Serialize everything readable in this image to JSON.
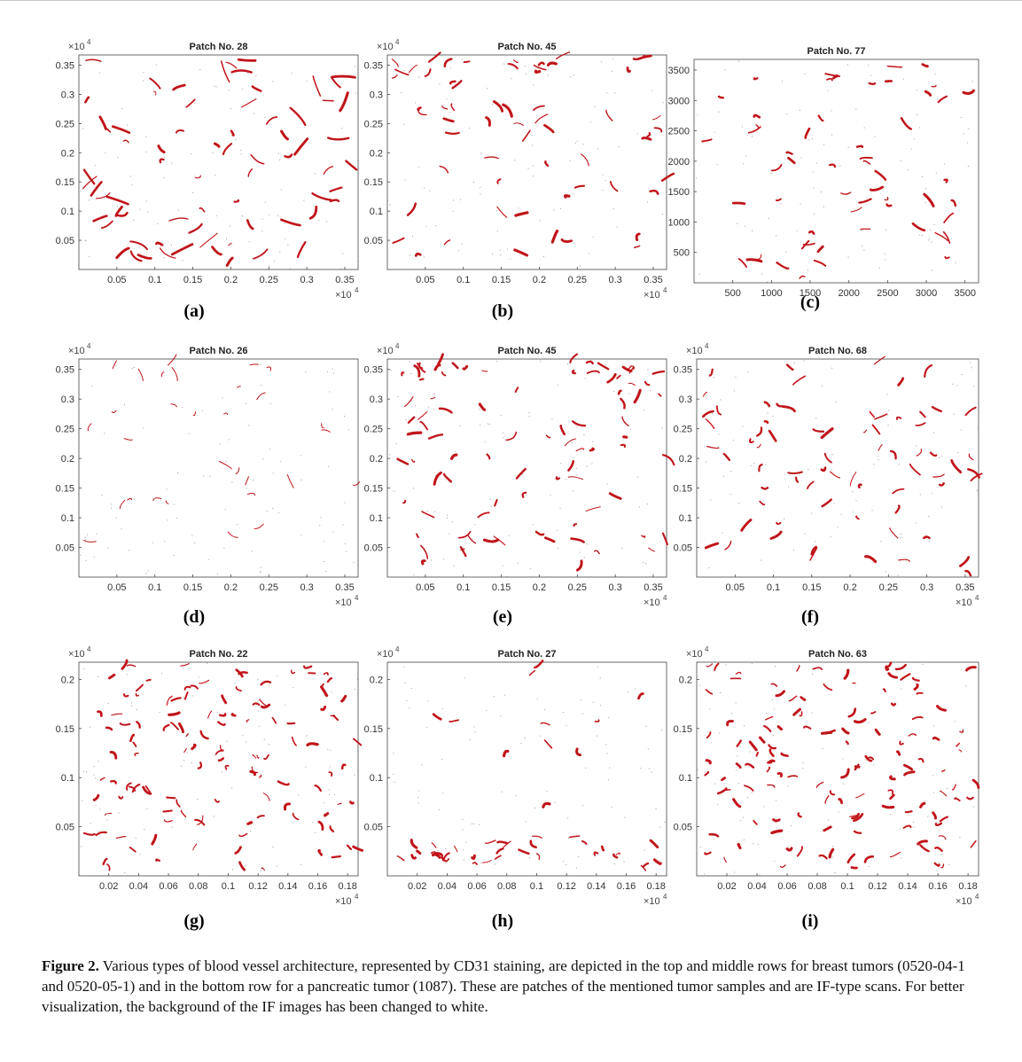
{
  "panels": [
    {
      "id": "a",
      "title": "Patch No. 28",
      "label": "(a)",
      "x_ticks": [
        "0.05",
        "0.1",
        "0.15",
        "0.2",
        "0.25",
        "0.3",
        "0.35"
      ],
      "y_ticks": [
        "0.35",
        "0.3",
        "0.25",
        "0.2",
        "0.15",
        "0.1",
        "0.05"
      ],
      "x_multiplier": "×10",
      "x_exponent": "4",
      "y_multiplier": "×10",
      "y_exponent": "4",
      "vessel_color": "#c0141a"
    },
    {
      "id": "b",
      "title": "Patch No. 45",
      "label": "(b)",
      "x_ticks": [
        "0.05",
        "0.1",
        "0.15",
        "0.2",
        "0.25",
        "0.3",
        "0.35"
      ],
      "y_ticks": [
        "0.35",
        "0.3",
        "0.25",
        "0.2",
        "0.15",
        "0.1",
        "0.05"
      ],
      "x_multiplier": "×10",
      "x_exponent": "4",
      "y_multiplier": "×10",
      "y_exponent": "4",
      "vessel_color": "#c0141a"
    },
    {
      "id": "c",
      "title": "Patch No. 77",
      "label": "(c)",
      "x_ticks": [
        "500",
        "1000",
        "1500",
        "2000",
        "2500",
        "3000",
        "3500"
      ],
      "y_ticks": [
        "3500",
        "3000",
        "2500",
        "2000",
        "1500",
        "1000",
        "500"
      ],
      "x_multiplier": "",
      "x_exponent": "",
      "y_multiplier": "",
      "y_exponent": "",
      "vessel_color": "#c0141a"
    },
    {
      "id": "d",
      "title": "Patch No. 26",
      "label": "(d)",
      "x_ticks": [
        "0.05",
        "0.1",
        "0.15",
        "0.2",
        "0.25",
        "0.3",
        "0.35"
      ],
      "y_ticks": [
        "0.35",
        "0.3",
        "0.25",
        "0.2",
        "0.15",
        "0.1",
        "0.05"
      ],
      "x_multiplier": "×10",
      "x_exponent": "4",
      "y_multiplier": "×10",
      "y_exponent": "4",
      "vessel_color": "#c0141a"
    },
    {
      "id": "e",
      "title": "Patch No. 45",
      "label": "(e)",
      "x_ticks": [
        "0.05",
        "0.1",
        "0.15",
        "0.2",
        "0.25",
        "0.3",
        "0.35"
      ],
      "y_ticks": [
        "0.35",
        "0.3",
        "0.25",
        "0.2",
        "0.15",
        "0.1",
        "0.05"
      ],
      "x_multiplier": "×10",
      "x_exponent": "4",
      "y_multiplier": "×10",
      "y_exponent": "4",
      "vessel_color": "#c0141a"
    },
    {
      "id": "f",
      "title": "Patch No. 68",
      "label": "(f)",
      "x_ticks": [
        "0.05",
        "0.1",
        "0.15",
        "0.2",
        "0.25",
        "0.3",
        "0.35"
      ],
      "y_ticks": [
        "0.35",
        "0.3",
        "0.25",
        "0.2",
        "0.15",
        "0.1",
        "0.05"
      ],
      "x_multiplier": "×10",
      "x_exponent": "4",
      "y_multiplier": "×10",
      "y_exponent": "4",
      "vessel_color": "#c0141a"
    },
    {
      "id": "g",
      "title": "Patch No. 22",
      "label": "(g)",
      "x_ticks": [
        "0.02",
        "0.04",
        "0.06",
        "0.08",
        "0.1",
        "0.12",
        "0.14",
        "0.16",
        "0.18"
      ],
      "y_ticks": [
        "0.2",
        "0.15",
        "0.1",
        "0.05"
      ],
      "x_multiplier": "×10",
      "x_exponent": "4",
      "y_multiplier": "×10",
      "y_exponent": "4",
      "vessel_color": "#c0141a"
    },
    {
      "id": "h",
      "title": "Patch No. 27",
      "label": "(h)",
      "x_ticks": [
        "0.02",
        "0.04",
        "0.06",
        "0.08",
        "0.1",
        "0.12",
        "0.14",
        "0.16",
        "0.18"
      ],
      "y_ticks": [
        "0.2",
        "0.15",
        "0.1",
        "0.05"
      ],
      "x_multiplier": "×10",
      "x_exponent": "4",
      "y_multiplier": "×10",
      "y_exponent": "4",
      "vessel_color": "#c0141a"
    },
    {
      "id": "i",
      "title": "Patch No. 63",
      "label": "(i)",
      "x_ticks": [
        "0.02",
        "0.04",
        "0.06",
        "0.08",
        "0.1",
        "0.12",
        "0.14",
        "0.16",
        "0.18"
      ],
      "y_ticks": [
        "0.2",
        "0.15",
        "0.1",
        "0.05"
      ],
      "x_multiplier": "×10",
      "x_exponent": "4",
      "y_multiplier": "×10",
      "y_exponent": "4",
      "vessel_color": "#c0141a"
    }
  ],
  "caption": {
    "label": "Figure 2.",
    "text": " Various types of blood vessel architecture, represented by CD31 staining, are depicted in the top and middle rows for breast tumors (0520-04-1 and 0520-05-1) and in the bottom row for a pancreatic tumor (1087). These are patches of the mentioned tumor samples and are IF-type scans. For better visualization, the background of the IF images has been changed to white."
  }
}
